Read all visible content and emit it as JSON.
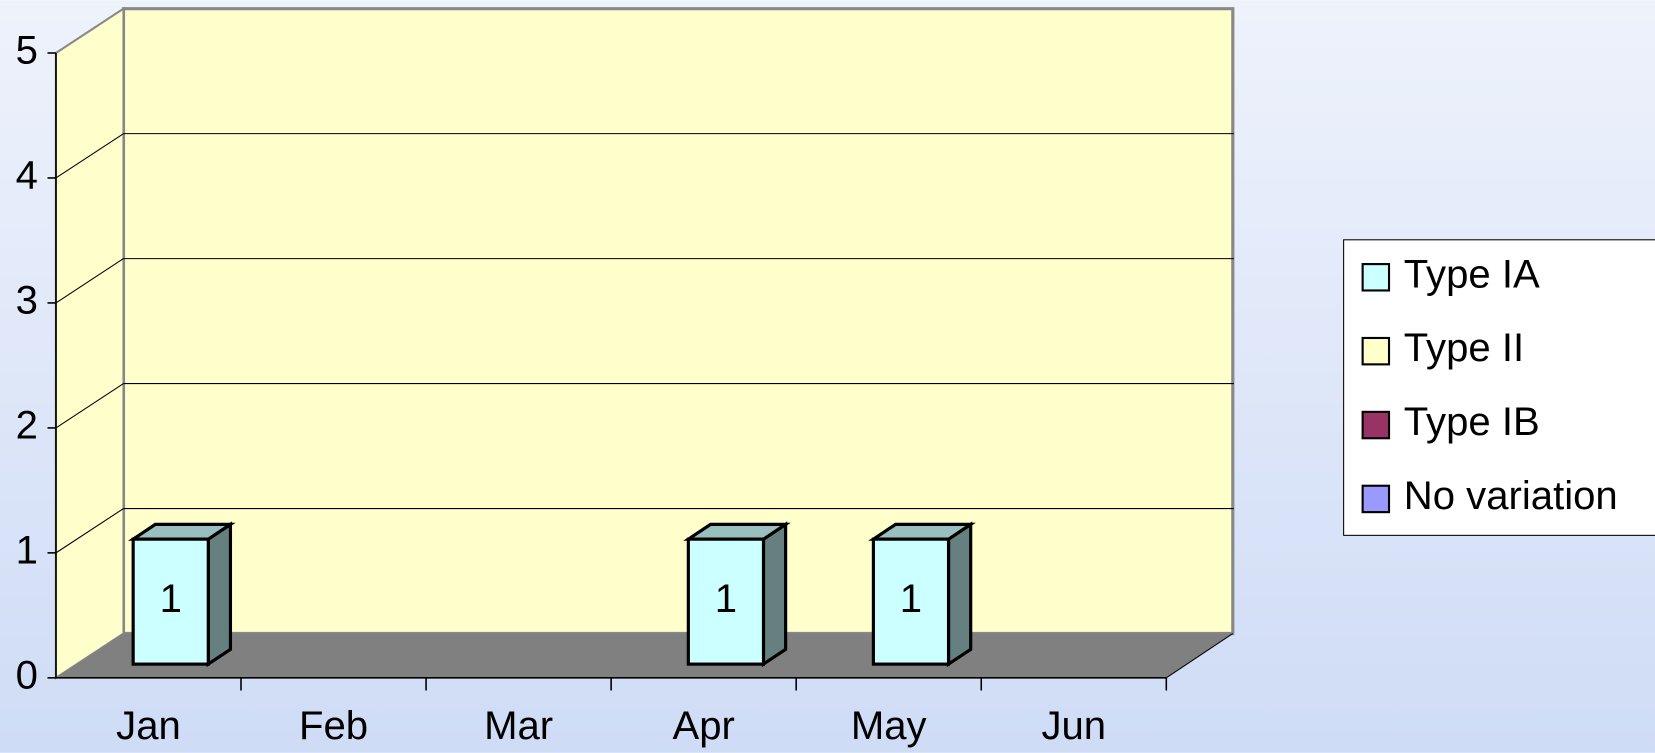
{
  "chart_data": {
    "type": "bar3d",
    "categories": [
      "Jan",
      "Feb",
      "Mar",
      "Apr",
      "May",
      "Jun"
    ],
    "series": [
      {
        "name": "Type IA",
        "color": "#ccffff",
        "values": [
          1,
          null,
          null,
          1,
          1,
          null
        ]
      },
      {
        "name": "Type II",
        "color": "#ffffcc",
        "values": [
          null,
          null,
          null,
          null,
          null,
          null
        ]
      },
      {
        "name": "Type IB",
        "color": "#993366",
        "values": [
          null,
          null,
          null,
          null,
          null,
          null
        ]
      },
      {
        "name": "No variation",
        "color": "#9999ff",
        "values": [
          null,
          null,
          null,
          null,
          null,
          null
        ]
      }
    ],
    "ylim": [
      0,
      5
    ],
    "yticks": [
      0,
      1,
      2,
      3,
      4,
      5
    ],
    "grid": true,
    "legend": "right"
  }
}
